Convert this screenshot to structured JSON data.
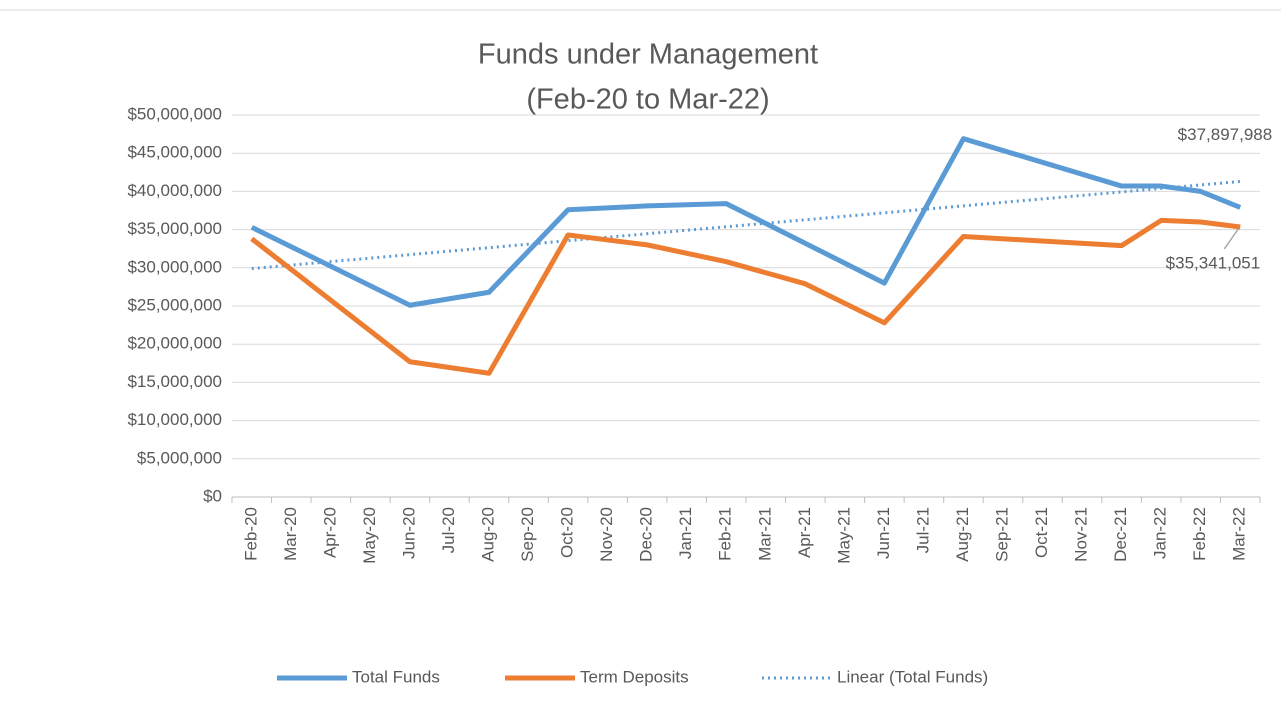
{
  "chart_data": {
    "type": "line",
    "title": "Funds under Management",
    "subtitle": "(Feb-20 to Mar-22)",
    "categories": [
      "Feb-20",
      "Mar-20",
      "Apr-20",
      "May-20",
      "Jun-20",
      "Jul-20",
      "Aug-20",
      "Sep-20",
      "Oct-20",
      "Nov-20",
      "Dec-20",
      "Jan-21",
      "Feb-21",
      "Mar-21",
      "Apr-21",
      "May-21",
      "Jun-21",
      "Jul-21",
      "Aug-21",
      "Sep-21",
      "Oct-21",
      "Nov-21",
      "Dec-21",
      "Jan-22",
      "Feb-22",
      "Mar-22"
    ],
    "series": [
      {
        "name": "Total Funds",
        "color": "#5b9bd5",
        "x": [
          "Feb-20",
          "Jun-20",
          "Aug-20",
          "Oct-20",
          "Dec-20",
          "Feb-21",
          "Jun-21",
          "Aug-21",
          "Dec-21",
          "Jan-22",
          "Feb-22",
          "Mar-22"
        ],
        "values": [
          35300000,
          25100000,
          26800000,
          37600000,
          38100000,
          38400000,
          28000000,
          46900000,
          40700000,
          40700000,
          40000000,
          37897988
        ],
        "value_labels": [
          null,
          null,
          null,
          null,
          null,
          null,
          null,
          null,
          null,
          null,
          null,
          "$37,897,988"
        ]
      },
      {
        "name": "Term Deposits",
        "color": "#ed7d31",
        "x": [
          "Feb-20",
          "Jun-20",
          "Aug-20",
          "Oct-20",
          "Dec-20",
          "Feb-21",
          "Apr-21",
          "Jun-21",
          "Aug-21",
          "Dec-21",
          "Jan-22",
          "Feb-22",
          "Mar-22"
        ],
        "values": [
          33800000,
          17700000,
          16200000,
          34300000,
          33000000,
          30800000,
          27900000,
          22800000,
          34100000,
          32900000,
          36200000,
          36000000,
          35341051
        ],
        "value_labels": [
          null,
          null,
          null,
          null,
          null,
          null,
          null,
          null,
          null,
          null,
          null,
          null,
          "$35,341,051"
        ]
      }
    ],
    "trendline": {
      "name": "Linear (Total Funds)",
      "color": "#5b9bd5",
      "style": "dotted",
      "x": [
        "Feb-20",
        "Mar-22"
      ],
      "values": [
        29900000,
        41300000
      ]
    },
    "ylim": [
      0,
      50000000
    ],
    "yticks": [
      {
        "value": 0,
        "label": "$0"
      },
      {
        "value": 5000000,
        "label": "$5,000,000"
      },
      {
        "value": 10000000,
        "label": "$10,000,000"
      },
      {
        "value": 15000000,
        "label": "$15,000,000"
      },
      {
        "value": 20000000,
        "label": "$20,000,000"
      },
      {
        "value": 25000000,
        "label": "$25,000,000"
      },
      {
        "value": 30000000,
        "label": "$30,000,000"
      },
      {
        "value": 35000000,
        "label": "$35,000,000"
      },
      {
        "value": 40000000,
        "label": "$40,000,000"
      },
      {
        "value": 45000000,
        "label": "$45,000,000"
      },
      {
        "value": 50000000,
        "label": "$50,000,000"
      }
    ],
    "grid": true,
    "legend": "bottom"
  }
}
